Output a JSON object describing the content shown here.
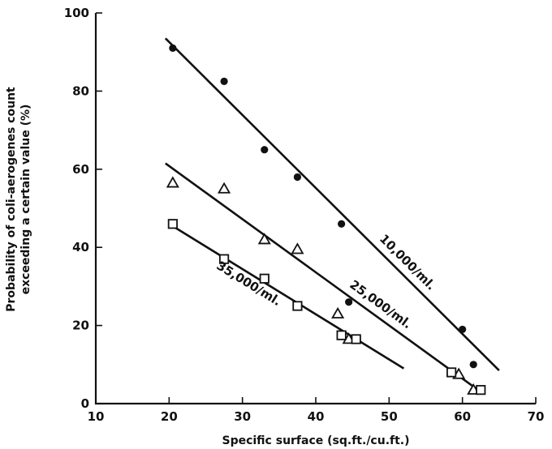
{
  "chart_data": {
    "type": "scatter",
    "xlabel": "Specific surface (sq.ft./cu.ft.)",
    "ylabel_line1": "Probability of coli-aerogenes count",
    "ylabel_line2": "exceeding a certain value (%)",
    "xlim": [
      10,
      70
    ],
    "ylim": [
      0,
      100
    ],
    "xticks": [
      "10",
      "20",
      "30",
      "40",
      "50",
      "60",
      "70"
    ],
    "yticks": [
      "0",
      "20",
      "40",
      "60",
      "80",
      "100"
    ],
    "grid": false,
    "series": [
      {
        "name": "10,000/ml.",
        "marker": "filled-circle",
        "points": [
          [
            20.5,
            91
          ],
          [
            27.5,
            82.5
          ],
          [
            33,
            65
          ],
          [
            37.5,
            58
          ],
          [
            43.5,
            46
          ],
          [
            44.5,
            26
          ],
          [
            60,
            19
          ],
          [
            61.5,
            10
          ]
        ],
        "fit": [
          [
            19.5,
            93.5
          ],
          [
            65,
            8.5
          ]
        ]
      },
      {
        "name": "25,000/ml.",
        "marker": "open-triangle",
        "points": [
          [
            20.5,
            56.5
          ],
          [
            27.5,
            55
          ],
          [
            33,
            42
          ],
          [
            37.5,
            39.5
          ],
          [
            43,
            23
          ],
          [
            44.5,
            16.5
          ],
          [
            59.5,
            7.5
          ],
          [
            61.5,
            3.5
          ]
        ],
        "fit": [
          [
            19.5,
            61.5
          ],
          [
            62.5,
            3
          ]
        ]
      },
      {
        "name": "35,000/ml.",
        "marker": "open-square",
        "points": [
          [
            20.5,
            46
          ],
          [
            27.5,
            37
          ],
          [
            33,
            32
          ],
          [
            37.5,
            25
          ],
          [
            43.5,
            17.5
          ],
          [
            45.5,
            16.5
          ],
          [
            58.5,
            8
          ],
          [
            62.5,
            3.5
          ]
        ],
        "fit": [
          [
            20,
            46
          ],
          [
            52,
            9
          ]
        ]
      }
    ]
  }
}
